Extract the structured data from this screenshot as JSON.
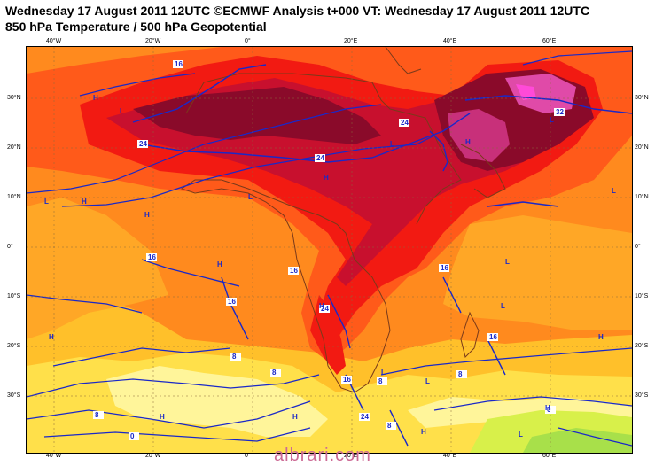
{
  "header": {
    "title_line1": "Wednesday 17 August 2011 12UTC ©ECMWF Analysis t+000 VT: Wednesday 17 August 2011 12UTC",
    "title_line2": "850 hPa Temperature / 500 hPa Geopotential"
  },
  "axes": {
    "lon_ticks": [
      "40°W",
      "20°W",
      "0°",
      "20°E",
      "40°E",
      "60°E"
    ],
    "lat_ticks_left": [
      "30°N",
      "20°N",
      "10°N",
      "0°",
      "10°S",
      "20°S",
      "30°S"
    ],
    "lat_ticks_right": [
      "30°N",
      "20°N",
      "10°N",
      "0°",
      "10°S",
      "20°S",
      "30°S"
    ]
  },
  "contour_labels": [
    "16",
    "24",
    "24",
    "24",
    "32",
    "16",
    "16",
    "16",
    "24",
    "16",
    "8",
    "8",
    "8",
    "8",
    "0",
    "0",
    "8",
    "16",
    "16",
    "24",
    "8"
  ],
  "pressure_centers": [
    "H",
    "L",
    "L",
    "H",
    "H",
    "L",
    "H",
    "L",
    "H",
    "H",
    "L",
    "L",
    "H",
    "L",
    "H",
    "H",
    "L",
    "H",
    "H",
    "L",
    "L",
    "H",
    "H",
    "L"
  ],
  "colors": {
    "frame_bg": "#ff8a1e",
    "warm_orange": "#ffa726",
    "yellow_orange": "#ffc02a",
    "yellow": "#ffe04a",
    "pale_yellow": "#fff59a",
    "light_green": "#d8f04a",
    "green": "#a8e04a",
    "red_orange": "#ff5a1a",
    "red": "#f21a12",
    "crimson": "#c8102e",
    "dark_red": "#8a0a2a",
    "magenta": "#c8307a",
    "pink": "#e04aa8",
    "hot_pink": "#ff4ad8",
    "contour_blue": "#1a28c8",
    "coast_brown": "#7a3a1a",
    "watermark": "#cc6a95"
  },
  "watermark": "albrari.com"
}
